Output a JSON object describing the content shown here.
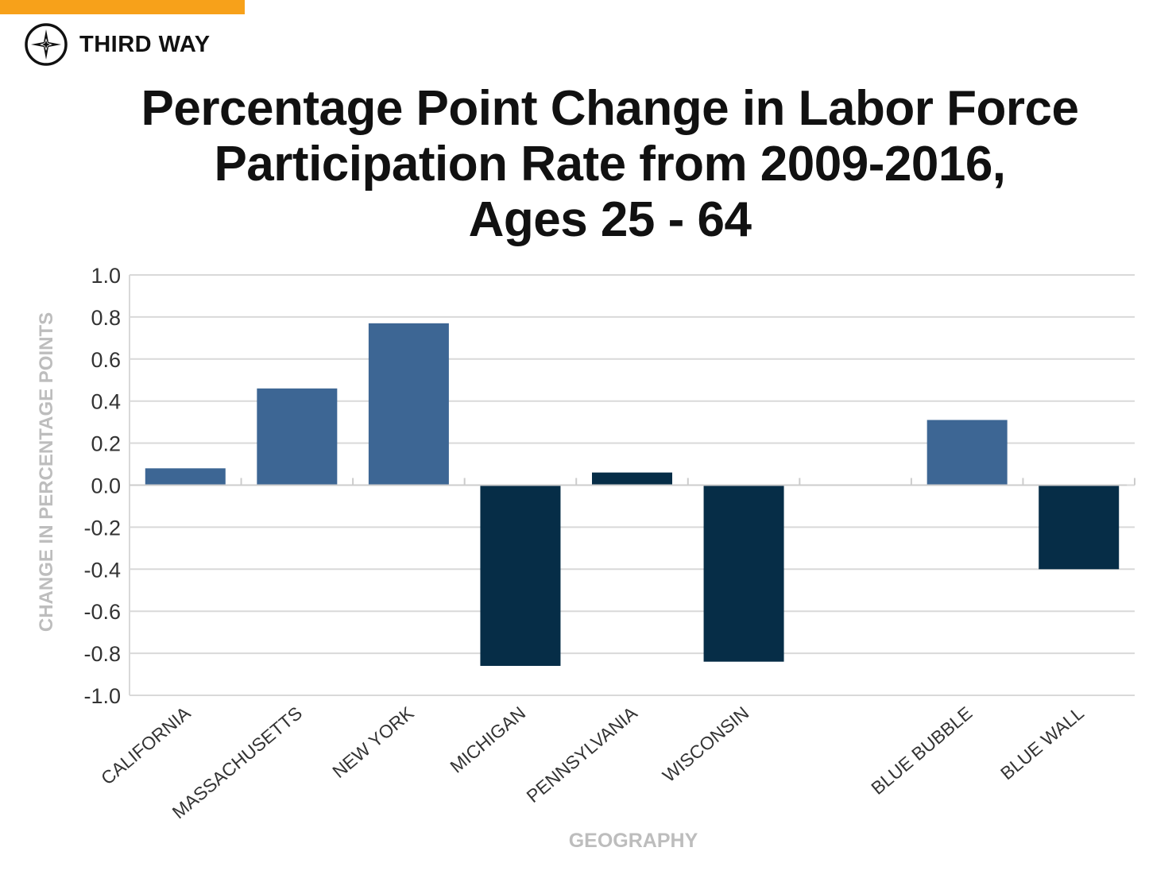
{
  "brand": {
    "name": "THIRD WAY",
    "icon": "compass-star-icon",
    "accent_color": "#F7A11A"
  },
  "chart_data": {
    "type": "bar",
    "title": "Percentage Point Change in Labor Force Participation Rate from 2009-2016, Ages 25 - 64",
    "title_lines": [
      "Percentage Point Change in Labor Force",
      "Participation Rate from 2009-2016,",
      "Ages 25 - 64"
    ],
    "xlabel": "GEOGRAPHY",
    "ylabel": "CHANGE IN PERCENTAGE POINTS",
    "ylim": [
      -1.0,
      1.0
    ],
    "yticks": [
      1.0,
      0.8,
      0.6,
      0.4,
      0.2,
      0.0,
      -0.2,
      -0.4,
      -0.6,
      -0.8,
      -1.0
    ],
    "ytick_labels": [
      "1.0",
      "0.8",
      "0.6",
      "0.4",
      "0.2",
      "0.0",
      "-0.2",
      "-0.4",
      "-0.6",
      "-0.8",
      "-1.0"
    ],
    "grid": true,
    "categories": [
      "CALIFORNIA",
      "MASSACHUSETTS",
      "NEW YORK",
      "MICHIGAN",
      "PENNSYLVANIA",
      "WISCONSIN",
      "",
      "BLUE BUBBLE",
      "BLUE WALL"
    ],
    "values": [
      0.08,
      0.46,
      0.77,
      -0.86,
      0.06,
      -0.84,
      null,
      0.31,
      -0.4
    ],
    "groups": [
      "bubble",
      "bubble",
      "bubble",
      "wall",
      "wall",
      "wall",
      "",
      "bubble",
      "wall"
    ],
    "colors": {
      "bubble": "#3D6694",
      "wall": "#062D47",
      "grid": "#D9D9D9",
      "axis_title": "#BDBDBD",
      "tick_text": "#333333"
    }
  }
}
